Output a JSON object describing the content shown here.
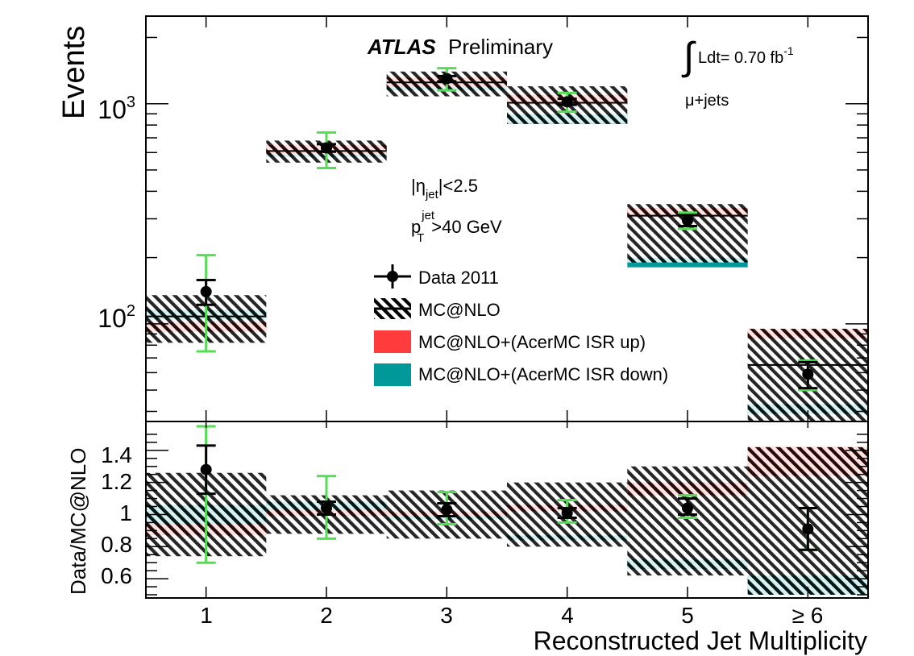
{
  "chart_data": {
    "type": "bar",
    "title": "ATLAS Preliminary",
    "experiment": "ATLAS",
    "status": "Preliminary",
    "luminosity": {
      "integral": "∫",
      "prefix": "Ldt= 0.70 fb",
      "exponent": "-1"
    },
    "channel": "μ+jets",
    "cuts": {
      "eta_prefix": "|η",
      "eta_sub": "jet",
      "eta_suffix": "|<2.5",
      "pt_base": "p",
      "pt_sup": "jet",
      "pt_sub": "T",
      "pt_suffix": ">40 GeV"
    },
    "xlabel": "Reconstructed Jet Multiplicity",
    "categories": [
      "1",
      "2",
      "3",
      "4",
      "5",
      "≥ 6"
    ],
    "colors": {
      "isr_up": "#ff3b3b",
      "isr_down": "#009999",
      "data": "#000000",
      "total_err": "#55dd55"
    },
    "top": {
      "ylabel": "Events",
      "yscale": "log",
      "ylim": [
        36,
        2500
      ],
      "major_tick_labels": [
        {
          "base": "10",
          "exp": "2",
          "value": 100
        },
        {
          "base": "10",
          "exp": "3",
          "value": 1000
        }
      ],
      "series": [
        {
          "name": "Data 2011",
          "values": [
            140,
            630,
            1300,
            1020,
            295,
            59
          ],
          "stat_err": [
            18,
            25,
            36,
            32,
            17,
            8
          ],
          "total_err": [
            [
              75,
              205
            ],
            [
              510,
              740
            ],
            [
              1150,
              1450
            ],
            [
              920,
              1120
            ],
            [
              270,
              320
            ],
            [
              50,
              68
            ]
          ]
        },
        {
          "name": "MC@NLO",
          "values": [
            108,
            610,
            1250,
            1010,
            310,
            65
          ],
          "band": [
            [
              82,
              135
            ],
            [
              540,
              680
            ],
            [
              1080,
              1400
            ],
            [
              810,
              1200
            ],
            [
              190,
              350
            ],
            [
              36,
              95
            ]
          ]
        },
        {
          "name": "MC@NLO+(AcerMC ISR up)",
          "values": [
            97,
            618,
            1250,
            1040,
            320,
            90
          ]
        },
        {
          "name": "MC@NLO+(AcerMC ISR down)",
          "values": [
            110,
            603,
            1210,
            850,
            190,
            41
          ]
        }
      ]
    },
    "ratio": {
      "ylabel": "Data/MC@NLO",
      "ylim": [
        0.48,
        1.58
      ],
      "yticks": [
        0.6,
        0.8,
        1,
        1.2,
        1.4
      ],
      "ytick_labels": [
        "0.6",
        "0.8",
        "1",
        "1.2",
        "1.4"
      ],
      "data": [
        1.28,
        1.04,
        1.03,
        1.01,
        1.04,
        0.91
      ],
      "stat_err": [
        [
          1.13,
          1.43
        ],
        [
          1.0,
          1.08
        ],
        [
          0.99,
          1.07
        ],
        [
          0.98,
          1.04
        ],
        [
          1.0,
          1.1
        ],
        [
          0.78,
          1.04
        ]
      ],
      "total_err": [
        [
          0.7,
          1.55
        ],
        [
          0.85,
          1.24
        ],
        [
          0.94,
          1.14
        ],
        [
          0.95,
          1.09
        ],
        [
          0.98,
          1.12
        ],
        [
          0.78,
          1.04
        ]
      ],
      "mc_band": [
        [
          0.74,
          1.26
        ],
        [
          0.88,
          1.12
        ],
        [
          0.85,
          1.15
        ],
        [
          0.8,
          1.2
        ],
        [
          0.62,
          1.3
        ],
        [
          0.5,
          1.42
        ]
      ],
      "isr_up": [
        [
          0.87,
          0.94
        ],
        [
          0.99,
          1.03
        ],
        [
          0.99,
          1.02
        ],
        [
          1.02,
          1.06
        ],
        [
          1.12,
          1.2
        ],
        [
          1.24,
          1.42
        ]
      ],
      "isr_down": [
        [
          0.94,
          1.06
        ],
        [
          1.01,
          1.08
        ],
        [
          0.97,
          1.0
        ],
        [
          0.84,
          0.87
        ],
        [
          0.66,
          0.72
        ],
        [
          0.5,
          0.62
        ]
      ]
    }
  }
}
